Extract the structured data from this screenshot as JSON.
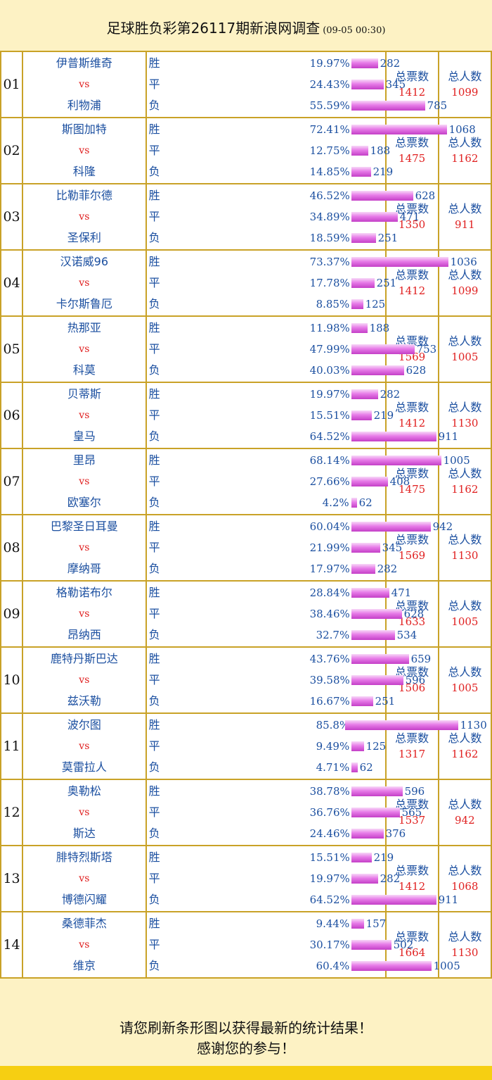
{
  "header": {
    "title": "足球胜负彩第26117期新浪网调查",
    "time": "(09-05 00:30)"
  },
  "labels": {
    "win": "胜",
    "draw": "平",
    "loss": "负",
    "vs": "vs",
    "total_votes": "总票数",
    "total_people": "总人数"
  },
  "colors": {
    "background": "#fdf2c4",
    "border": "#c9a227",
    "text_blue": "#1b4fa0",
    "text_red": "#e02020",
    "bar": "#d45ad6"
  },
  "matches": [
    {
      "no": "01",
      "home": "伊普斯维奇",
      "away": "利物浦",
      "win": {
        "pct": "19.97%",
        "count": "282"
      },
      "draw": {
        "pct": "24.43%",
        "count": "345"
      },
      "loss": {
        "pct": "55.59%",
        "count": "785"
      },
      "total_votes": "1412",
      "total_people": "1099"
    },
    {
      "no": "02",
      "home": "斯图加特",
      "away": "科隆",
      "win": {
        "pct": "72.41%",
        "count": "1068"
      },
      "draw": {
        "pct": "12.75%",
        "count": "188"
      },
      "loss": {
        "pct": "14.85%",
        "count": "219"
      },
      "total_votes": "1475",
      "total_people": "1162"
    },
    {
      "no": "03",
      "home": "比勒菲尔德",
      "away": "圣保利",
      "win": {
        "pct": "46.52%",
        "count": "628"
      },
      "draw": {
        "pct": "34.89%",
        "count": "471"
      },
      "loss": {
        "pct": "18.59%",
        "count": "251"
      },
      "total_votes": "1350",
      "total_people": "911"
    },
    {
      "no": "04",
      "home": "汉诺威96",
      "away": "卡尔斯鲁厄",
      "win": {
        "pct": "73.37%",
        "count": "1036"
      },
      "draw": {
        "pct": "17.78%",
        "count": "251"
      },
      "loss": {
        "pct": "8.85%",
        "count": "125"
      },
      "total_votes": "1412",
      "total_people": "1099"
    },
    {
      "no": "05",
      "home": "热那亚",
      "away": "科莫",
      "win": {
        "pct": "11.98%",
        "count": "188"
      },
      "draw": {
        "pct": "47.99%",
        "count": "753"
      },
      "loss": {
        "pct": "40.03%",
        "count": "628"
      },
      "total_votes": "1569",
      "total_people": "1005"
    },
    {
      "no": "06",
      "home": "贝蒂斯",
      "away": "皇马",
      "win": {
        "pct": "19.97%",
        "count": "282"
      },
      "draw": {
        "pct": "15.51%",
        "count": "219"
      },
      "loss": {
        "pct": "64.52%",
        "count": "911"
      },
      "total_votes": "1412",
      "total_people": "1130"
    },
    {
      "no": "07",
      "home": "里昂",
      "away": "欧塞尔",
      "win": {
        "pct": "68.14%",
        "count": "1005"
      },
      "draw": {
        "pct": "27.66%",
        "count": "408"
      },
      "loss": {
        "pct": "4.2%",
        "count": "62"
      },
      "total_votes": "1475",
      "total_people": "1162"
    },
    {
      "no": "08",
      "home": "巴黎圣日耳曼",
      "away": "摩纳哥",
      "win": {
        "pct": "60.04%",
        "count": "942"
      },
      "draw": {
        "pct": "21.99%",
        "count": "345"
      },
      "loss": {
        "pct": "17.97%",
        "count": "282"
      },
      "total_votes": "1569",
      "total_people": "1130"
    },
    {
      "no": "09",
      "home": "格勒诺布尔",
      "away": "昂纳西",
      "win": {
        "pct": "28.84%",
        "count": "471"
      },
      "draw": {
        "pct": "38.46%",
        "count": "628"
      },
      "loss": {
        "pct": "32.7%",
        "count": "534"
      },
      "total_votes": "1633",
      "total_people": "1005"
    },
    {
      "no": "10",
      "home": "鹿特丹斯巴达",
      "away": "兹沃勒",
      "win": {
        "pct": "43.76%",
        "count": "659"
      },
      "draw": {
        "pct": "39.58%",
        "count": "596"
      },
      "loss": {
        "pct": "16.67%",
        "count": "251"
      },
      "total_votes": "1506",
      "total_people": "1005"
    },
    {
      "no": "11",
      "home": "波尔图",
      "away": "莫雷拉人",
      "win": {
        "pct": "85.8%",
        "count": "1130"
      },
      "draw": {
        "pct": "9.49%",
        "count": "125"
      },
      "loss": {
        "pct": "4.71%",
        "count": "62"
      },
      "total_votes": "1317",
      "total_people": "1162"
    },
    {
      "no": "12",
      "home": "奥勒松",
      "away": "斯达",
      "win": {
        "pct": "38.78%",
        "count": "596"
      },
      "draw": {
        "pct": "36.76%",
        "count": "565"
      },
      "loss": {
        "pct": "24.46%",
        "count": "376"
      },
      "total_votes": "1537",
      "total_people": "942"
    },
    {
      "no": "13",
      "home": "腓特烈斯塔",
      "away": "博德闪耀",
      "win": {
        "pct": "15.51%",
        "count": "219"
      },
      "draw": {
        "pct": "19.97%",
        "count": "282"
      },
      "loss": {
        "pct": "64.52%",
        "count": "911"
      },
      "total_votes": "1412",
      "total_people": "1068"
    },
    {
      "no": "14",
      "home": "桑德菲杰",
      "away": "维京",
      "win": {
        "pct": "9.44%",
        "count": "157"
      },
      "draw": {
        "pct": "30.17%",
        "count": "502"
      },
      "loss": {
        "pct": "60.4%",
        "count": "1005"
      },
      "total_votes": "1664",
      "total_people": "1130"
    }
  ],
  "footer": {
    "line1": "请您刷新条形图以获得最新的统计结果！",
    "line2": "感谢您的参与！"
  }
}
